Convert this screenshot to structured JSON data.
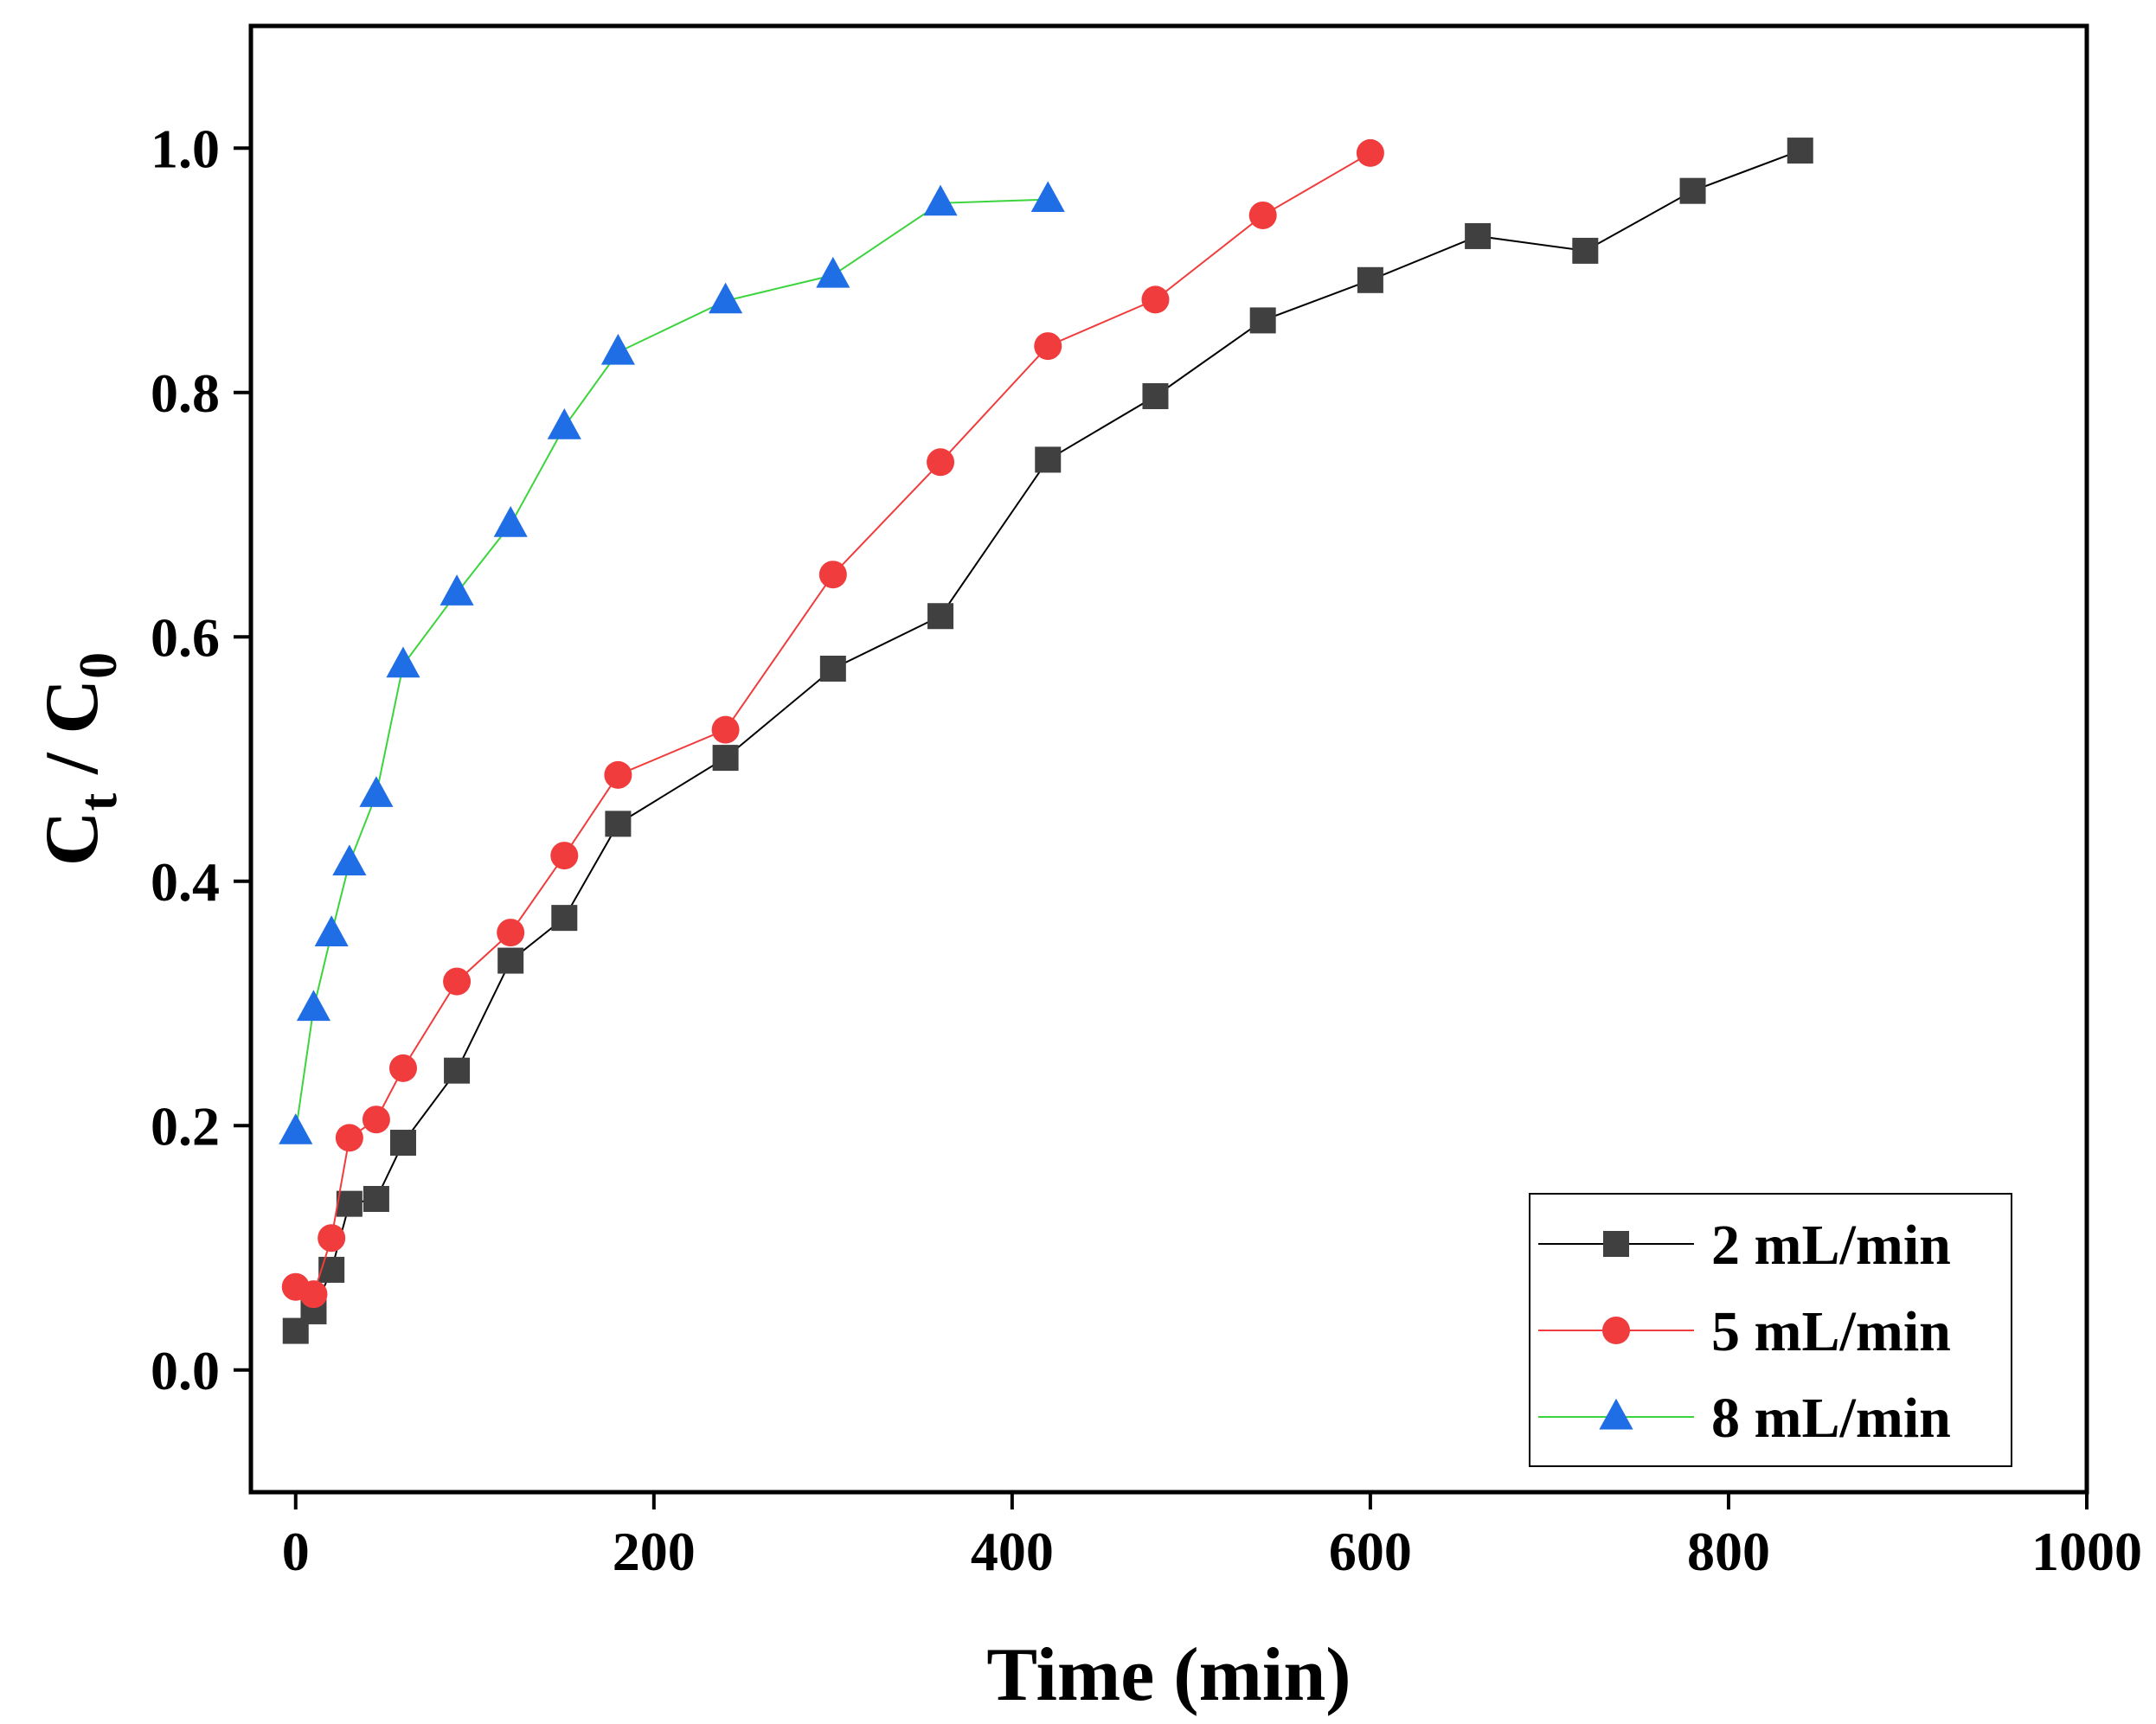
{
  "chart_data": {
    "type": "line",
    "title": "",
    "xlabel": "Time (min)",
    "ylabel": {
      "main": "C",
      "sub1": "t",
      "sep": " / C",
      "sub2": "0"
    },
    "xlim": [
      -25,
      1000
    ],
    "ylim": [
      -0.1,
      1.1
    ],
    "xticks": [
      0,
      200,
      400,
      600,
      800,
      1000
    ],
    "yticks": [
      0.0,
      0.2,
      0.4,
      0.6,
      0.8,
      1.0
    ],
    "xtick_labels": [
      "0",
      "200",
      "400",
      "600",
      "800",
      "1000"
    ],
    "ytick_labels": [
      "0.0",
      "0.2",
      "0.4",
      "0.6",
      "0.8",
      "1.0"
    ],
    "legend_position": "bottom-right",
    "series": [
      {
        "name": "2 mL/min",
        "color": "#404040",
        "line_color": "#000000",
        "marker": "square",
        "x": [
          0,
          10,
          20,
          30,
          45,
          60,
          90,
          120,
          150,
          180,
          240,
          300,
          360,
          420,
          480,
          540,
          600,
          660,
          720,
          780,
          840
        ],
        "y": [
          0.032,
          0.048,
          0.082,
          0.136,
          0.14,
          0.186,
          0.245,
          0.335,
          0.37,
          0.447,
          0.501,
          0.574,
          0.617,
          0.745,
          0.797,
          0.859,
          0.892,
          0.928,
          0.916,
          0.965,
          0.998
        ]
      },
      {
        "name": "5 mL/min",
        "color": "#f03c3c",
        "line_color": "#f03c3c",
        "marker": "circle",
        "x": [
          0,
          10,
          20,
          30,
          45,
          60,
          90,
          120,
          150,
          180,
          240,
          300,
          360,
          420,
          480,
          540,
          600
        ],
        "y": [
          0.068,
          0.062,
          0.108,
          0.19,
          0.205,
          0.247,
          0.318,
          0.358,
          0.421,
          0.487,
          0.524,
          0.651,
          0.743,
          0.838,
          0.876,
          0.945,
          0.996
        ]
      },
      {
        "name": "8 mL/min",
        "color": "#1f6ee6",
        "line_color": "#3cd43c",
        "marker": "triangle",
        "x": [
          0,
          10,
          20,
          30,
          45,
          60,
          90,
          120,
          150,
          180,
          240,
          300,
          360,
          420
        ],
        "y": [
          0.195,
          0.296,
          0.357,
          0.415,
          0.471,
          0.577,
          0.636,
          0.692,
          0.772,
          0.833,
          0.875,
          0.896,
          0.955,
          0.958
        ]
      }
    ]
  }
}
